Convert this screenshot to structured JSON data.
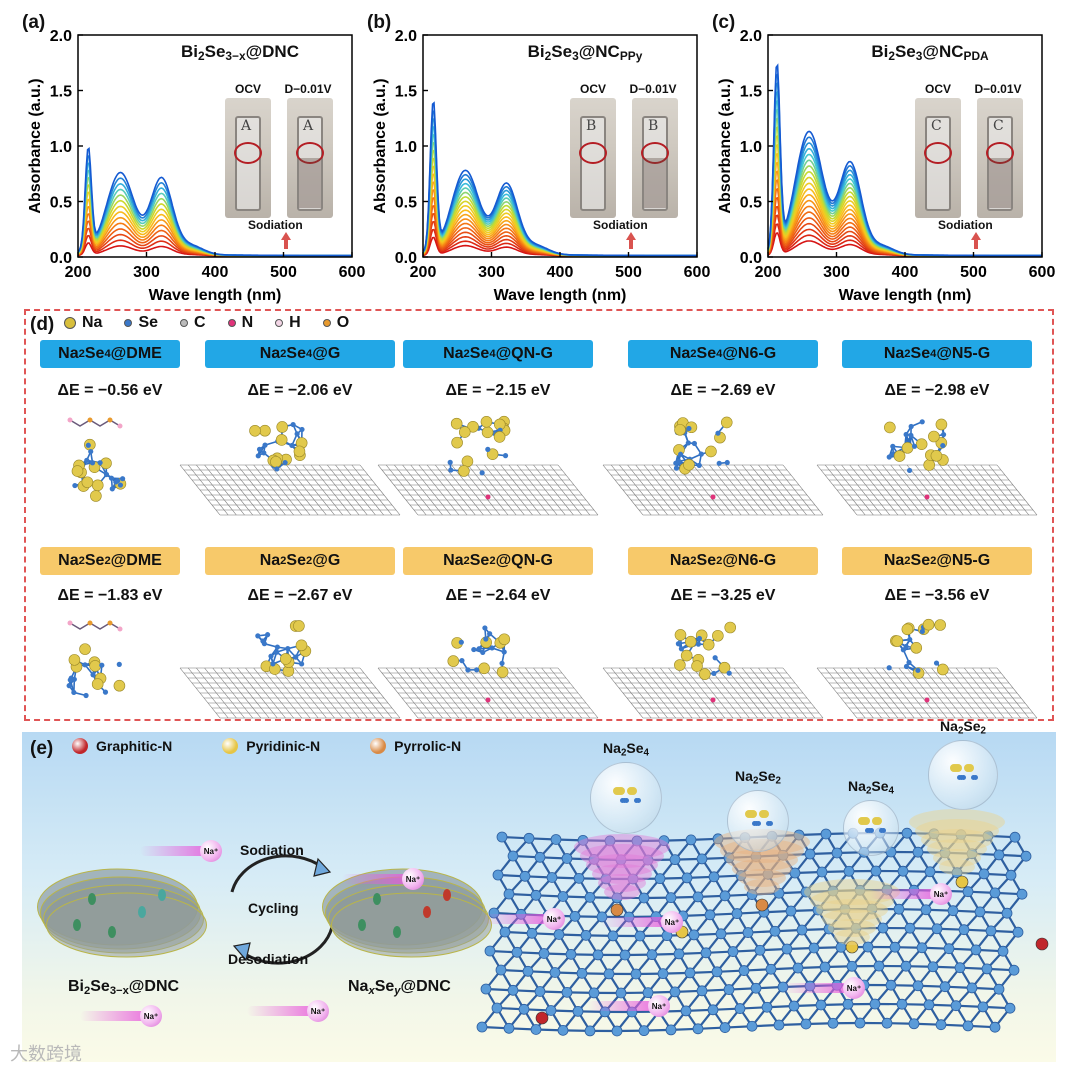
{
  "panels": {
    "a": {
      "label": "(a)",
      "title_main": "Bi",
      "title_sub1": "2",
      "title_mid": "Se",
      "title_sub2": "3−x",
      "title_end": "@DNC",
      "inset_left": "OCV",
      "inset_right": "D−0.01V",
      "arrow_label": "Sodiation",
      "vial_letter": "A"
    },
    "b": {
      "label": "(b)",
      "title_main": "Bi",
      "title_sub1": "2",
      "title_mid": "Se",
      "title_sub2": "3",
      "title_end": "@NC",
      "title_end_sub": "PPy",
      "inset_left": "OCV",
      "inset_right": "D−0.01V",
      "arrow_label": "Sodiation",
      "vial_letter": "B"
    },
    "c": {
      "label": "(c)",
      "title_main": "Bi",
      "title_sub1": "2",
      "title_mid": "Se",
      "title_sub2": "3",
      "title_end": "@NC",
      "title_end_sub": "PDA",
      "inset_left": "OCV",
      "inset_right": "D−0.01V",
      "arrow_label": "Sodiation",
      "vial_letter": "C"
    }
  },
  "chart_data": [
    {
      "type": "line",
      "panel": "a",
      "xlabel": "Wave length (nm)",
      "ylabel": "Absorbance (a.u.)",
      "xlim": [
        200,
        600
      ],
      "ylim": [
        0,
        2.0
      ],
      "xticks": [
        "200",
        "300",
        "400",
        "500",
        "600"
      ],
      "yticks": [
        "0.0",
        "0.5",
        "1.0",
        "1.5",
        "2.0"
      ],
      "peaks_nm": [
        215,
        262,
        322
      ],
      "max_peak_values": [
        0.91,
        0.73,
        0.68
      ],
      "num_curves": 14
    },
    {
      "type": "line",
      "panel": "b",
      "xlabel": "Wave length (nm)",
      "ylabel": "Absorbance (a.u.)",
      "xlim": [
        200,
        600
      ],
      "ylim": [
        0,
        2.0
      ],
      "xticks": [
        "200",
        "300",
        "400",
        "500",
        "600"
      ],
      "yticks": [
        "0.0",
        "0.5",
        "1.0",
        "1.5",
        "2.0"
      ],
      "peaks_nm": [
        215,
        262,
        322
      ],
      "max_peak_values": [
        1.33,
        0.75,
        0.63
      ],
      "num_curves": 18
    },
    {
      "type": "line",
      "panel": "c",
      "xlabel": "Wave length (nm)",
      "ylabel": "Absorbance (a.u.)",
      "xlim": [
        200,
        600
      ],
      "ylim": [
        0,
        2.0
      ],
      "xticks": [
        "200",
        "300",
        "400",
        "500",
        "600"
      ],
      "yticks": [
        "0.0",
        "0.5",
        "1.0",
        "1.5",
        "2.0"
      ],
      "peaks_nm": [
        213,
        260,
        320
      ],
      "max_peak_values": [
        1.65,
        1.1,
        0.82
      ],
      "num_curves": 20
    }
  ],
  "panel_d": {
    "label": "(d)",
    "legend": [
      {
        "name": "Na",
        "color": "#d8bf3c"
      },
      {
        "name": "Se",
        "color": "#3a78c9"
      },
      {
        "name": "C",
        "color": "#bbbbbb"
      },
      {
        "name": "N",
        "color": "#e0337a"
      },
      {
        "name": "H",
        "color": "#f3d6e6"
      },
      {
        "name": "O",
        "color": "#e89a2e"
      }
    ],
    "row1": [
      {
        "pre": "Na",
        "s1": "2",
        "mid": "Se",
        "s2": "4",
        "post": "@DME",
        "energy": "ΔE = −0.56 eV"
      },
      {
        "pre": "Na",
        "s1": "2",
        "mid": "Se",
        "s2": "4",
        "post": "@G",
        "energy": "ΔE = −2.06 eV"
      },
      {
        "pre": "Na",
        "s1": "2",
        "mid": "Se",
        "s2": "4",
        "post": "@QN-G",
        "energy": "ΔE = −2.15 eV"
      },
      {
        "pre": "Na",
        "s1": "2",
        "mid": "Se",
        "s2": "4",
        "post": "@N6-G",
        "energy": "ΔE = −2.69 eV"
      },
      {
        "pre": "Na",
        "s1": "2",
        "mid": "Se",
        "s2": "4",
        "post": "@N5-G",
        "energy": "ΔE = −2.98 eV"
      }
    ],
    "row2": [
      {
        "pre": "Na",
        "s1": "2",
        "mid": "Se",
        "s2": "2",
        "post": "@DME",
        "energy": "ΔE = −1.83 eV"
      },
      {
        "pre": "Na",
        "s1": "2",
        "mid": "Se",
        "s2": "2",
        "post": "@G",
        "energy": "ΔE = −2.67 eV"
      },
      {
        "pre": "Na",
        "s1": "2",
        "mid": "Se",
        "s2": "2",
        "post": "@QN-G",
        "energy": "ΔE = −2.64 eV"
      },
      {
        "pre": "Na",
        "s1": "2",
        "mid": "Se",
        "s2": "2",
        "post": "@N6-G",
        "energy": "ΔE = −3.25 eV"
      },
      {
        "pre": "Na",
        "s1": "2",
        "mid": "Se",
        "s2": "2",
        "post": "@N5-G",
        "energy": "ΔE = −3.56 eV"
      }
    ]
  },
  "panel_e": {
    "label": "(e)",
    "legend": [
      {
        "name": "Graphitic-N",
        "color": "#c0262b"
      },
      {
        "name": "Pyridinic-N",
        "color": "#e6c545"
      },
      {
        "name": "Pyrrolic-N",
        "color": "#d98a45"
      }
    ],
    "cycle": {
      "top": "Sodiation",
      "center": "Cycling",
      "bottom": "Desodiation"
    },
    "left_material": {
      "pre": "Bi",
      "s1": "2",
      "mid": "Se",
      "s2": "3−x",
      "post": "@DNC"
    },
    "right_material": {
      "pre": "Na",
      "s1": "x",
      "mid": "Se",
      "s2": "y",
      "post": "@DNC"
    },
    "ion_label": "Na⁺",
    "bubbles": [
      {
        "pre": "Na",
        "sub1": "2",
        "mid": "Se",
        "sub2": "4"
      },
      {
        "pre": "Na",
        "sub1": "2",
        "mid": "Se",
        "sub2": "2"
      },
      {
        "pre": "Na",
        "sub1": "2",
        "mid": "Se",
        "sub2": "4"
      },
      {
        "pre": "Na",
        "sub1": "2",
        "mid": "Se",
        "sub2": "2"
      }
    ]
  },
  "watermark": "大数跨境"
}
